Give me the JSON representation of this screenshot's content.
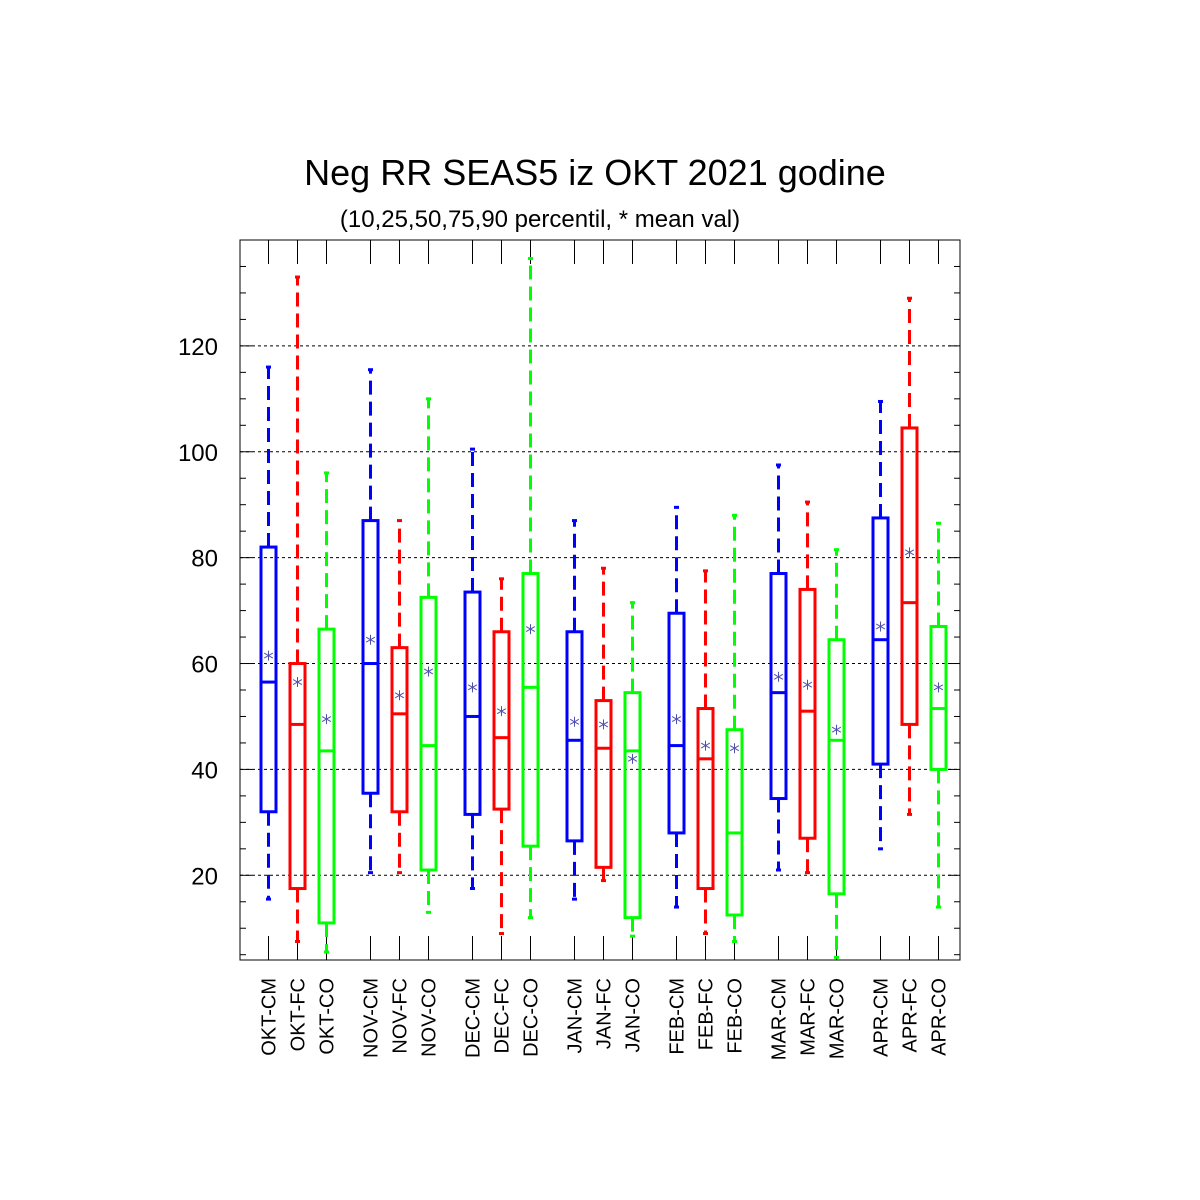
{
  "chart_data": {
    "type": "boxplot",
    "title": "Neg RR SEAS5 iz OKT 2021 godine",
    "subtitle": "(10,25,50,75,90 percentil, * mean val)",
    "xlabel": "",
    "ylabel": "",
    "ylim": [
      4,
      140
    ],
    "yticks": [
      20,
      40,
      60,
      80,
      100,
      120
    ],
    "grid": "horizontal-dashed",
    "series_colors": {
      "CM": "#0000ff",
      "FC": "#ff0000",
      "CO": "#00ff00"
    },
    "mean_marker_color": "#5050b0",
    "categories": [
      "OKT-CM",
      "OKT-FC",
      "OKT-CO",
      "NOV-CM",
      "NOV-FC",
      "NOV-CO",
      "DEC-CM",
      "DEC-FC",
      "DEC-CO",
      "JAN-CM",
      "JAN-FC",
      "JAN-CO",
      "FEB-CM",
      "FEB-FC",
      "FEB-CO",
      "MAR-CM",
      "MAR-FC",
      "MAR-CO",
      "APR-CM",
      "APR-FC",
      "APR-CO"
    ],
    "boxes": [
      {
        "label": "OKT-CM",
        "series": "CM",
        "p10": 15.5,
        "p25": 32,
        "p50": 56.5,
        "p75": 82,
        "p90": 116,
        "mean": 61.5
      },
      {
        "label": "OKT-FC",
        "series": "FC",
        "p10": 7.5,
        "p25": 17.5,
        "p50": 48.5,
        "p75": 60,
        "p90": 133,
        "mean": 56.5
      },
      {
        "label": "OKT-CO",
        "series": "CO",
        "p10": 5.5,
        "p25": 11,
        "p50": 43.5,
        "p75": 66.5,
        "p90": 96,
        "mean": 49.5
      },
      {
        "label": "NOV-CM",
        "series": "CM",
        "p10": 20.5,
        "p25": 35.5,
        "p50": 60,
        "p75": 87,
        "p90": 115.5,
        "mean": 64.5
      },
      {
        "label": "NOV-FC",
        "series": "FC",
        "p10": 20.5,
        "p25": 32,
        "p50": 50.5,
        "p75": 63,
        "p90": 87,
        "mean": 54
      },
      {
        "label": "NOV-CO",
        "series": "CO",
        "p10": 13,
        "p25": 21,
        "p50": 44.5,
        "p75": 72.5,
        "p90": 110,
        "mean": 58.5
      },
      {
        "label": "DEC-CM",
        "series": "CM",
        "p10": 17.5,
        "p25": 31.5,
        "p50": 50,
        "p75": 73.5,
        "p90": 100.5,
        "mean": 55.5
      },
      {
        "label": "DEC-FC",
        "series": "FC",
        "p10": 9,
        "p25": 32.5,
        "p50": 46,
        "p75": 66,
        "p90": 76,
        "mean": 51
      },
      {
        "label": "DEC-CO",
        "series": "CO",
        "p10": 12,
        "p25": 25.5,
        "p50": 55.5,
        "p75": 77,
        "p90": 136.5,
        "mean": 66.5
      },
      {
        "label": "JAN-CM",
        "series": "CM",
        "p10": 15.5,
        "p25": 26.5,
        "p50": 45.5,
        "p75": 66,
        "p90": 87,
        "mean": 49
      },
      {
        "label": "JAN-FC",
        "series": "FC",
        "p10": 19,
        "p25": 21.5,
        "p50": 44,
        "p75": 53,
        "p90": 78,
        "mean": 48.5
      },
      {
        "label": "JAN-CO",
        "series": "CO",
        "p10": 8.5,
        "p25": 12,
        "p50": 43.5,
        "p75": 54.5,
        "p90": 71.5,
        "mean": 42
      },
      {
        "label": "FEB-CM",
        "series": "CM",
        "p10": 14,
        "p25": 28,
        "p50": 44.5,
        "p75": 69.5,
        "p90": 89.5,
        "mean": 49.5
      },
      {
        "label": "FEB-FC",
        "series": "FC",
        "p10": 9,
        "p25": 17.5,
        "p50": 42,
        "p75": 51.5,
        "p90": 77.5,
        "mean": 44.5
      },
      {
        "label": "FEB-CO",
        "series": "CO",
        "p10": 7.5,
        "p25": 12.5,
        "p50": 28,
        "p75": 47.5,
        "p90": 88,
        "mean": 44
      },
      {
        "label": "MAR-CM",
        "series": "CM",
        "p10": 21,
        "p25": 34.5,
        "p50": 54.5,
        "p75": 77,
        "p90": 97.5,
        "mean": 57.5
      },
      {
        "label": "MAR-FC",
        "series": "FC",
        "p10": 20.5,
        "p25": 27,
        "p50": 51,
        "p75": 74,
        "p90": 90.5,
        "mean": 56
      },
      {
        "label": "MAR-CO",
        "series": "CO",
        "p10": 4.5,
        "p25": 16.5,
        "p50": 45.5,
        "p75": 64.5,
        "p90": 81.5,
        "mean": 47.5
      },
      {
        "label": "APR-CM",
        "series": "CM",
        "p10": 25,
        "p25": 41,
        "p50": 64.5,
        "p75": 87.5,
        "p90": 109.5,
        "mean": 67
      },
      {
        "label": "APR-FC",
        "series": "FC",
        "p10": 31.5,
        "p25": 48.5,
        "p50": 71.5,
        "p75": 104.5,
        "p90": 129,
        "mean": 81
      },
      {
        "label": "APR-CO",
        "series": "CO",
        "p10": 14,
        "p25": 40,
        "p50": 51.5,
        "p75": 67,
        "p90": 86.5,
        "mean": 55.5
      }
    ]
  }
}
